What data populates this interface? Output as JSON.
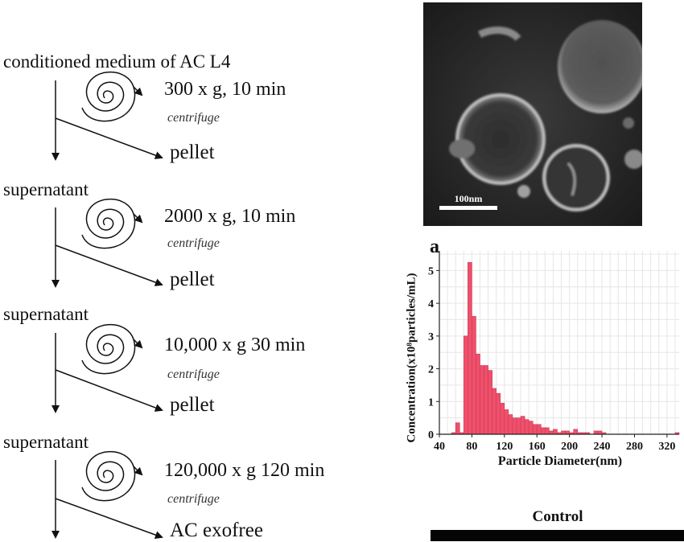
{
  "protocol": {
    "start_label": "conditioned medium of AC L4",
    "supernatant_label": "supernatant",
    "steps": [
      {
        "condition": "300 x g, 10 min",
        "method": "centrifuge",
        "product": "pellet"
      },
      {
        "condition": "2000 x g, 10 min",
        "method": "centrifuge",
        "product": "pellet"
      },
      {
        "condition": "10,000 x g 30 min",
        "method": "centrifuge",
        "product": "pellet"
      },
      {
        "condition": "120,000 x g 120 min",
        "method": "centrifuge",
        "product": "AC exofree"
      }
    ]
  },
  "tem_image": {
    "scale_bar_label": "100nm"
  },
  "chart_data": {
    "type": "bar",
    "panel_label": "a",
    "xlabel": "Particle Diameter(nm)",
    "ylabel": "Concentration(x10⁸particles/mL)",
    "xlim": [
      40,
      335
    ],
    "ylim": [
      0,
      5.6
    ],
    "x_ticks": [
      40,
      80,
      120,
      160,
      200,
      240,
      280,
      320
    ],
    "y_ticks": [
      0,
      1,
      2,
      3,
      4,
      5
    ],
    "bin_width": 5,
    "bar_color": "#f0506b",
    "grid": true,
    "bins_start": [
      55,
      60,
      65,
      70,
      75,
      80,
      85,
      90,
      95,
      100,
      105,
      110,
      115,
      120,
      125,
      130,
      135,
      140,
      145,
      150,
      155,
      160,
      165,
      170,
      175,
      180,
      185,
      190,
      195,
      200,
      205,
      210,
      215,
      220,
      225,
      230,
      235,
      240,
      245,
      250,
      255,
      260,
      265,
      270,
      275,
      280,
      285,
      290,
      295,
      300,
      305,
      310,
      315,
      320,
      325,
      330
    ],
    "values": [
      0.05,
      0.35,
      0.05,
      3.0,
      5.25,
      3.6,
      2.45,
      2.1,
      2.1,
      1.95,
      1.4,
      1.25,
      0.95,
      0.75,
      0.6,
      0.5,
      0.5,
      0.55,
      0.45,
      0.4,
      0.3,
      0.3,
      0.2,
      0.2,
      0.1,
      0.15,
      0.05,
      0.1,
      0.1,
      0.05,
      0.15,
      0.05,
      0.05,
      0.05,
      0.0,
      0.1,
      0.1,
      0.05,
      0.0,
      0.0,
      0.0,
      0.0,
      0.0,
      0.0,
      0.0,
      0.0,
      0.0,
      0.0,
      0.0,
      0.0,
      0.0,
      0.0,
      0.0,
      0.0,
      0.0,
      0.05
    ]
  },
  "control_panel": {
    "title": "Control"
  }
}
